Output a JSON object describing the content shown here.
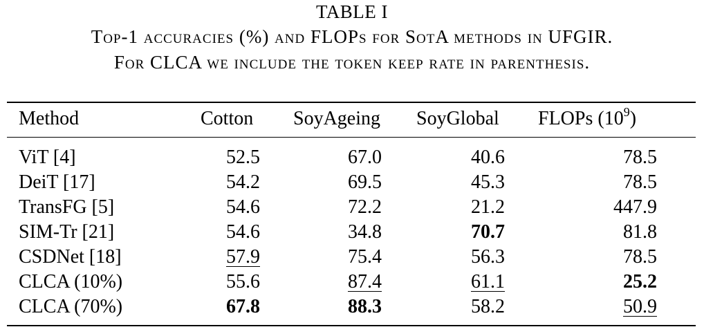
{
  "caption": {
    "label": "TABLE I",
    "line1": "Top-1 accuracies (%) and FLOPs for SotA methods in UFGIR.",
    "line2": "For CLCA we include the token keep rate in parenthesis."
  },
  "table": {
    "headers": {
      "method": "Method",
      "cotton": "Cotton",
      "soyageing": "SoyAgeing",
      "soyglobal": "SoyGlobal",
      "flops_prefix": "FLOPs (10",
      "flops_exp": "9",
      "flops_suffix": ")"
    },
    "rows": [
      {
        "method": "ViT [4]",
        "cotton": "52.5",
        "soyageing": "67.0",
        "soyglobal": "40.6",
        "flops": "78.5"
      },
      {
        "method": "DeiT [17]",
        "cotton": "54.2",
        "soyageing": "69.5",
        "soyglobal": "45.3",
        "flops": "78.5"
      },
      {
        "method": "TransFG [5]",
        "cotton": "54.6",
        "soyageing": "72.2",
        "soyglobal": "21.2",
        "flops": "447.9"
      },
      {
        "method": "SIM-Tr [21]",
        "cotton": "54.6",
        "soyageing": "34.8",
        "soyglobal": "70.7",
        "flops": "81.8"
      },
      {
        "method": "CSDNet [18]",
        "cotton": "57.9",
        "soyageing": "75.4",
        "soyglobal": "56.3",
        "flops": "78.5"
      },
      {
        "method": "CLCA (10%)",
        "cotton": "55.6",
        "soyageing": "87.4",
        "soyglobal": "61.1",
        "flops": "25.2"
      },
      {
        "method": "CLCA (70%)",
        "cotton": "67.8",
        "soyageing": "88.3",
        "soyglobal": "58.2",
        "flops": "50.9"
      }
    ],
    "emphasis": {
      "best_bold": [
        "soyglobal:3",
        "flops:5",
        "cotton:6",
        "soyageing:6"
      ],
      "second_underline": [
        "cotton:4",
        "soyageing:5",
        "soyglobal:5",
        "flops:6"
      ]
    }
  }
}
